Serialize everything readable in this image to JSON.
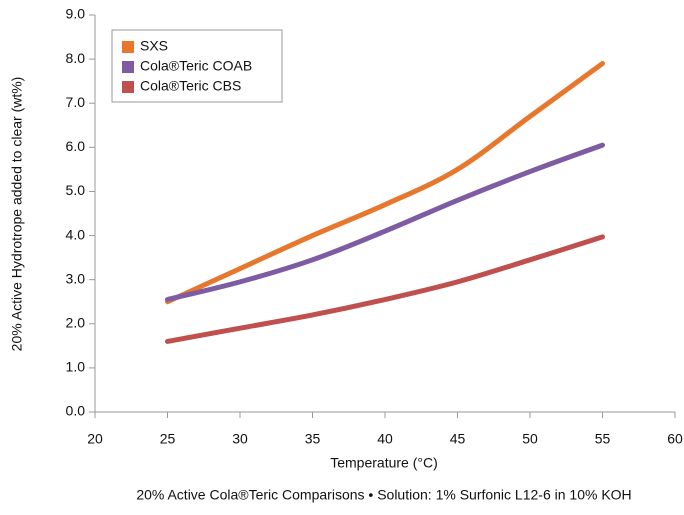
{
  "chart_data": {
    "type": "line",
    "x_label": "Temperature (°C)",
    "y_label": "20% Active Hydrotrope added to clear (wt%)",
    "caption": "20% Active Cola®Teric Comparisons • Solution: 1% Surfonic L12-6 in 10% KOH",
    "x": [
      25,
      30,
      35,
      40,
      45,
      50,
      55
    ],
    "series": [
      {
        "name": "SXS",
        "color": "#e8772e",
        "values": [
          2.5,
          3.25,
          4.0,
          4.7,
          5.5,
          6.7,
          7.9
        ]
      },
      {
        "name": "Cola®Teric COAB",
        "color": "#7e5ca3",
        "values": [
          2.55,
          2.95,
          3.45,
          4.1,
          4.8,
          5.45,
          6.05
        ]
      },
      {
        "name": "Cola®Teric CBS",
        "color": "#c0504d",
        "values": [
          1.6,
          1.9,
          2.2,
          2.55,
          2.95,
          3.45,
          3.97
        ]
      }
    ],
    "xlim": [
      20,
      60
    ],
    "xticks": [
      20,
      25,
      30,
      35,
      40,
      45,
      50,
      55,
      60
    ],
    "ylim": [
      0,
      9
    ],
    "yticks": [
      {
        "value": 0,
        "label": "0.0"
      },
      {
        "value": 1,
        "label": "1.0"
      },
      {
        "value": 2,
        "label": "2.0"
      },
      {
        "value": 3,
        "label": "3.0"
      },
      {
        "value": 4,
        "label": "4.0"
      },
      {
        "value": 5,
        "label": "5.0"
      },
      {
        "value": 6,
        "label": "6.0"
      },
      {
        "value": 7,
        "label": "7.0"
      },
      {
        "value": 8,
        "label": "8.0"
      },
      {
        "value": 9,
        "label": "9.0"
      }
    ],
    "legend": "upper left",
    "grid": false
  }
}
